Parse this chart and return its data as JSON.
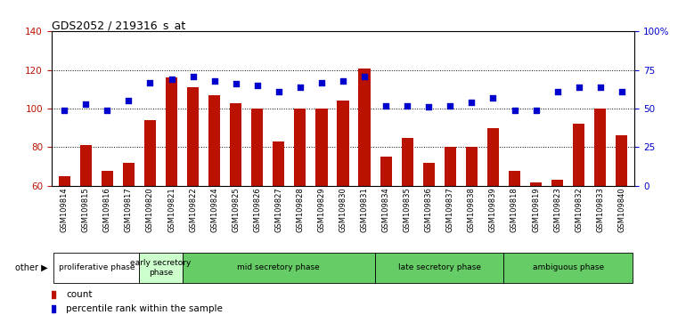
{
  "title": "GDS2052 / 219316_s_at",
  "samples": [
    "GSM109814",
    "GSM109815",
    "GSM109816",
    "GSM109817",
    "GSM109820",
    "GSM109821",
    "GSM109822",
    "GSM109824",
    "GSM109825",
    "GSM109826",
    "GSM109827",
    "GSM109828",
    "GSM109829",
    "GSM109830",
    "GSM109831",
    "GSM109834",
    "GSM109835",
    "GSM109836",
    "GSM109837",
    "GSM109838",
    "GSM109839",
    "GSM109818",
    "GSM109819",
    "GSM109823",
    "GSM109832",
    "GSM109833",
    "GSM109840"
  ],
  "counts": [
    65,
    81,
    68,
    72,
    94,
    116,
    111,
    107,
    103,
    100,
    83,
    100,
    100,
    104,
    121,
    75,
    85,
    72,
    80,
    80,
    90,
    68,
    62,
    63,
    92,
    100,
    86
  ],
  "percentiles": [
    49,
    53,
    49,
    55,
    67,
    69,
    71,
    68,
    66,
    65,
    61,
    64,
    67,
    68,
    71,
    52,
    52,
    51,
    52,
    54,
    57,
    49,
    49,
    61,
    64,
    64,
    61
  ],
  "phases": [
    {
      "label": "proliferative phase",
      "start": 0,
      "end": 4,
      "color": "#ffffff"
    },
    {
      "label": "early secretory\nphase",
      "start": 4,
      "end": 6,
      "color": "#ccffcc"
    },
    {
      "label": "mid secretory phase",
      "start": 6,
      "end": 15,
      "color": "#66cc66"
    },
    {
      "label": "late secretory phase",
      "start": 15,
      "end": 21,
      "color": "#66cc66"
    },
    {
      "label": "ambiguous phase",
      "start": 21,
      "end": 27,
      "color": "#66cc66"
    }
  ],
  "bar_color": "#bb1100",
  "dot_color": "#0000cc",
  "left_ylim": [
    60,
    140
  ],
  "right_ylim": [
    0,
    100
  ],
  "left_yticks": [
    60,
    80,
    100,
    120,
    140
  ],
  "right_yticks": [
    0,
    25,
    50,
    75,
    100
  ],
  "right_yticklabels": [
    "0",
    "25",
    "50",
    "75",
    "100%"
  ]
}
